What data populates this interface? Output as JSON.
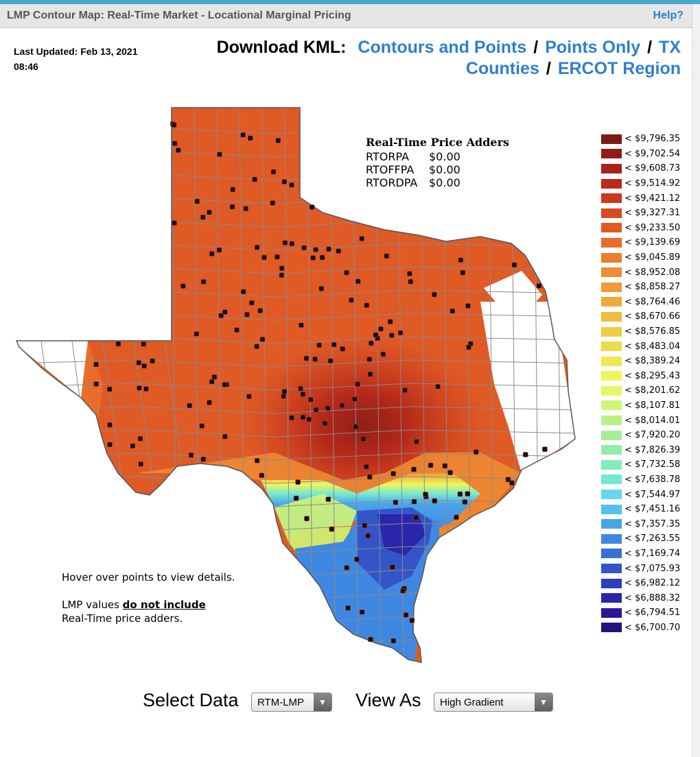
{
  "header": {
    "title": "LMP Contour Map: Real-Time Market - Locational Marginal Pricing",
    "help_label": "Help?"
  },
  "last_updated": "Last Updated: Feb 13, 2021 08:46",
  "download": {
    "label": "Download KML:",
    "links": [
      "Contours and Points",
      "Points Only",
      "TX Counties",
      "ERCOT Region"
    ],
    "separator": "/"
  },
  "price_adders": {
    "title": "Real-Time Price Adders",
    "rows": [
      {
        "name": "RTORPA",
        "value": "$0.00"
      },
      {
        "name": "RTOFFPA",
        "value": "$0.00"
      },
      {
        "name": "RTORDPA",
        "value": "$0.00"
      }
    ]
  },
  "legend": [
    {
      "label": "< $9,796.35",
      "color": "#7e1a14"
    },
    {
      "label": "< $9,702.54",
      "color": "#921d16"
    },
    {
      "label": "< $9,608.73",
      "color": "#a82218"
    },
    {
      "label": "< $9,514.92",
      "color": "#bb2a1b"
    },
    {
      "label": "< $9,421.12",
      "color": "#c9381e"
    },
    {
      "label": "< $9,327.31",
      "color": "#d84a21"
    },
    {
      "label": "< $9,233.50",
      "color": "#e05a25"
    },
    {
      "label": "< $9,139.69",
      "color": "#e86c2a"
    },
    {
      "label": "< $9,045.89",
      "color": "#ec7e30"
    },
    {
      "label": "< $8,952.08",
      "color": "#ee8d34"
    },
    {
      "label": "< $8,858.27",
      "color": "#ee9b38"
    },
    {
      "label": "< $8,764.46",
      "color": "#eeab3c"
    },
    {
      "label": "< $8,670.66",
      "color": "#eebd40"
    },
    {
      "label": "< $8,576.85",
      "color": "#eecd46"
    },
    {
      "label": "< $8,483.04",
      "color": "#eedc4c"
    },
    {
      "label": "< $8,389.24",
      "color": "#f0ea52"
    },
    {
      "label": "< $8,295.43",
      "color": "#f1f55c"
    },
    {
      "label": "< $8,201.62",
      "color": "#e6f76a"
    },
    {
      "label": "< $8,107.81",
      "color": "#cff577"
    },
    {
      "label": "< $8,014.01",
      "color": "#b8f284"
    },
    {
      "label": "< $7,920.20",
      "color": "#a4ef96"
    },
    {
      "label": "< $7,826.39",
      "color": "#92eda8"
    },
    {
      "label": "< $7,732.58",
      "color": "#82ecbc"
    },
    {
      "label": "< $7,638.78",
      "color": "#74e8d2"
    },
    {
      "label": "< $7,544.97",
      "color": "#64d8ee"
    },
    {
      "label": "< $7,451.16",
      "color": "#56bff0"
    },
    {
      "label": "< $7,357.35",
      "color": "#4aa4ec"
    },
    {
      "label": "< $7,263.55",
      "color": "#3f88e2"
    },
    {
      "label": "< $7,169.74",
      "color": "#3970d6"
    },
    {
      "label": "< $7,075.93",
      "color": "#3455c8"
    },
    {
      "label": "< $6,982.12",
      "color": "#2f3fbc"
    },
    {
      "label": "< $6,888.32",
      "color": "#2a26ac"
    },
    {
      "label": "< $6,794.51",
      "color": "#28179a"
    },
    {
      "label": "< $6,700.70",
      "color": "#27127f"
    }
  ],
  "notes": {
    "hover": "Hover over points to view details.",
    "lmp_prefix": "LMP values ",
    "lmp_emphasis": "do not include",
    "lmp_suffix": "Real-Time price adders."
  },
  "controls": {
    "select_data_label": "Select Data",
    "select_data_value": "RTM-LMP",
    "view_as_label": "View As",
    "view_as_value": "High Gradient"
  },
  "map_colors": {
    "base": "#e05a25",
    "hot": "#bb2a1b",
    "peak": "#8f1e17",
    "nonercot": "#ffffff",
    "county_line": "#8a8a8a",
    "point": "#111111"
  }
}
